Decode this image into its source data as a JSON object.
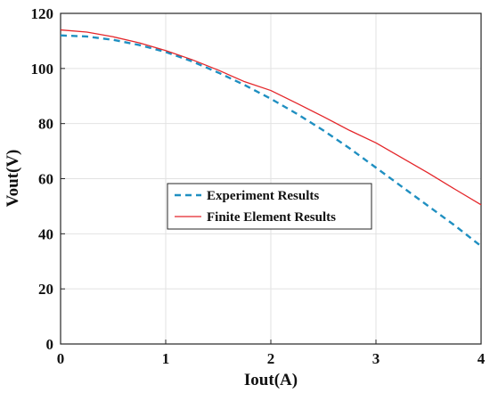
{
  "chart_data": {
    "type": "line",
    "title": "",
    "xlabel": "Iout(A)",
    "ylabel": "Vout(V)",
    "xlim": [
      0,
      4
    ],
    "ylim": [
      0,
      120
    ],
    "xticks": [
      0,
      1,
      2,
      3,
      4
    ],
    "yticks": [
      0,
      20,
      40,
      60,
      80,
      100,
      120
    ],
    "grid": true,
    "legend_position": "center",
    "series": [
      {
        "name": "Experiment Results",
        "color": "#1f8fc1",
        "dash": "dashed",
        "x": [
          0,
          0.25,
          0.5,
          0.75,
          1.0,
          1.25,
          1.5,
          1.75,
          2.0,
          2.25,
          2.5,
          2.75,
          3.0,
          3.25,
          3.5,
          3.75,
          4.0
        ],
        "y": [
          112,
          111.6,
          110.4,
          108.5,
          106,
          102.6,
          98.5,
          94,
          89,
          83.5,
          77.5,
          71,
          64,
          57,
          50,
          43,
          35.5
        ]
      },
      {
        "name": "Finite Element Results",
        "color": "#e4262a",
        "dash": "solid",
        "x": [
          0,
          0.25,
          0.5,
          0.75,
          1.0,
          1.25,
          1.5,
          1.75,
          2.0,
          2.25,
          2.5,
          2.75,
          3.0,
          3.25,
          3.5,
          3.75,
          4.0
        ],
        "y": [
          114,
          113.2,
          111.5,
          109.3,
          106.5,
          103.2,
          99.4,
          95.2,
          92,
          87.3,
          82.5,
          77.5,
          73,
          67.5,
          62,
          56.2,
          50.5
        ]
      }
    ]
  }
}
